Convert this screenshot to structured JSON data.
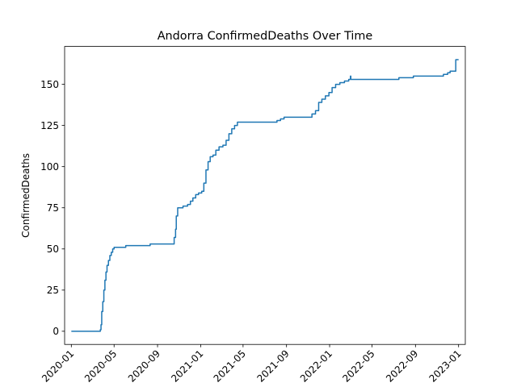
{
  "chart_data": {
    "type": "line",
    "title": "Andorra  ConfirmedDeaths Over Time",
    "xlabel": "",
    "ylabel": "ConfirmedDeaths",
    "x_axis_type": "date",
    "xlim": [
      "2019-12-13",
      "2023-01-20"
    ],
    "ylim": [
      -8,
      173
    ],
    "grid": false,
    "legend": "none",
    "x_ticks": [
      {
        "date": "2020-01-01",
        "label": "2020-01"
      },
      {
        "date": "2020-05-01",
        "label": "2020-05"
      },
      {
        "date": "2020-09-01",
        "label": "2020-09"
      },
      {
        "date": "2021-01-01",
        "label": "2021-01"
      },
      {
        "date": "2021-05-01",
        "label": "2021-05"
      },
      {
        "date": "2021-09-01",
        "label": "2021-09"
      },
      {
        "date": "2022-01-01",
        "label": "2022-01"
      },
      {
        "date": "2022-05-01",
        "label": "2022-05"
      },
      {
        "date": "2022-09-01",
        "label": "2022-09"
      },
      {
        "date": "2023-01-01",
        "label": "2023-01"
      }
    ],
    "y_ticks": [
      0,
      25,
      50,
      75,
      100,
      125,
      150
    ],
    "series": [
      {
        "color": "#1f77b4",
        "points": [
          [
            "2020-01-01",
            0
          ],
          [
            "2020-03-21",
            0
          ],
          [
            "2020-03-23",
            1
          ],
          [
            "2020-03-25",
            4
          ],
          [
            "2020-03-27",
            12
          ],
          [
            "2020-03-30",
            18
          ],
          [
            "2020-04-02",
            25
          ],
          [
            "2020-04-05",
            31
          ],
          [
            "2020-04-08",
            36
          ],
          [
            "2020-04-11",
            40
          ],
          [
            "2020-04-15",
            43
          ],
          [
            "2020-04-19",
            46
          ],
          [
            "2020-04-23",
            48
          ],
          [
            "2020-04-27",
            50
          ],
          [
            "2020-05-01",
            51
          ],
          [
            "2020-06-02",
            51
          ],
          [
            "2020-06-03",
            52
          ],
          [
            "2020-08-10",
            52
          ],
          [
            "2020-08-11",
            53
          ],
          [
            "2020-10-12",
            53
          ],
          [
            "2020-10-18",
            57
          ],
          [
            "2020-10-22",
            62
          ],
          [
            "2020-10-24",
            70
          ],
          [
            "2020-10-28",
            75
          ],
          [
            "2020-11-10",
            75
          ],
          [
            "2020-11-12",
            76
          ],
          [
            "2020-11-25",
            77
          ],
          [
            "2020-12-03",
            79
          ],
          [
            "2020-12-10",
            81
          ],
          [
            "2020-12-18",
            83
          ],
          [
            "2020-12-26",
            84
          ],
          [
            "2021-01-04",
            85
          ],
          [
            "2021-01-10",
            90
          ],
          [
            "2021-01-16",
            98
          ],
          [
            "2021-01-22",
            103
          ],
          [
            "2021-01-28",
            106
          ],
          [
            "2021-02-05",
            107
          ],
          [
            "2021-02-13",
            110
          ],
          [
            "2021-02-22",
            112
          ],
          [
            "2021-03-05",
            113
          ],
          [
            "2021-03-14",
            116
          ],
          [
            "2021-03-22",
            120
          ],
          [
            "2021-03-30",
            123
          ],
          [
            "2021-04-07",
            125
          ],
          [
            "2021-04-15",
            127
          ],
          [
            "2021-07-31",
            127
          ],
          [
            "2021-08-05",
            128
          ],
          [
            "2021-08-15",
            129
          ],
          [
            "2021-08-25",
            130
          ],
          [
            "2021-11-05",
            130
          ],
          [
            "2021-11-12",
            132
          ],
          [
            "2021-11-22",
            134
          ],
          [
            "2021-12-01",
            139
          ],
          [
            "2021-12-10",
            141
          ],
          [
            "2021-12-20",
            143
          ],
          [
            "2021-12-30",
            145
          ],
          [
            "2022-01-08",
            148
          ],
          [
            "2022-01-18",
            150
          ],
          [
            "2022-01-30",
            151
          ],
          [
            "2022-02-12",
            152
          ],
          [
            "2022-02-24",
            153
          ],
          [
            "2022-03-01",
            155
          ],
          [
            "2022-03-02",
            153
          ],
          [
            "2022-07-15",
            153
          ],
          [
            "2022-07-16",
            154
          ],
          [
            "2022-08-25",
            154
          ],
          [
            "2022-08-26",
            155
          ],
          [
            "2022-11-18",
            155
          ],
          [
            "2022-11-19",
            156
          ],
          [
            "2022-12-01",
            157
          ],
          [
            "2022-12-08",
            158
          ],
          [
            "2022-12-23",
            158
          ],
          [
            "2022-12-24",
            165
          ],
          [
            "2023-01-01",
            165
          ]
        ]
      }
    ]
  }
}
